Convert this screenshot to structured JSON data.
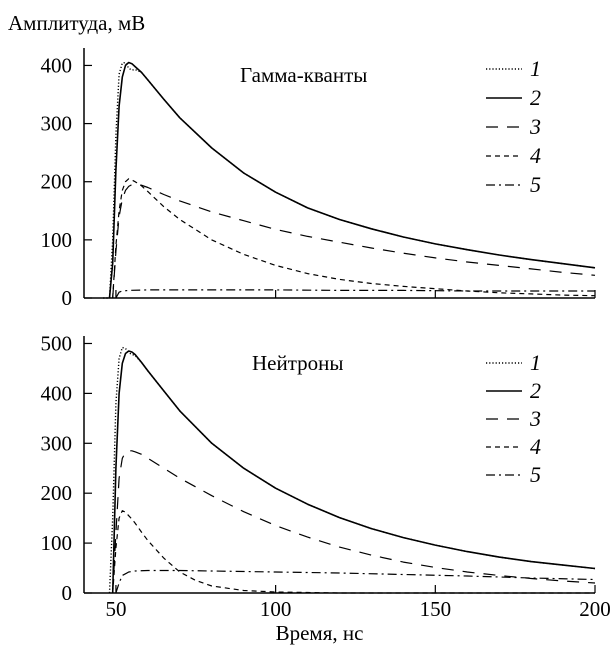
{
  "chart_data": [
    {
      "type": "line",
      "title": "Гамма-кванты",
      "ylabel": "Амплитуда, мВ",
      "xlabel": "",
      "xlim": [
        40,
        200
      ],
      "ylim": [
        0,
        430
      ],
      "yticks": [
        0,
        100,
        200,
        300,
        400
      ],
      "xticks": [
        50,
        100,
        150,
        200
      ],
      "legend_position": "top-right",
      "series": [
        {
          "name": "1",
          "style": "dotted",
          "x": [
            46,
            48,
            49,
            50,
            51,
            52,
            53,
            54,
            55,
            56,
            58,
            60,
            65,
            70,
            80,
            90,
            100,
            110,
            120,
            130,
            140,
            150,
            160,
            170,
            180,
            190,
            200
          ],
          "y": [
            0,
            0,
            100,
            280,
            385,
            404,
            405,
            395,
            392,
            393,
            388,
            375,
            342,
            310,
            258,
            215,
            182,
            155,
            135,
            119,
            105,
            93,
            83,
            74,
            66,
            59,
            52
          ]
        },
        {
          "name": "2",
          "style": "solid",
          "x": [
            48,
            49,
            50,
            51,
            52,
            53,
            54,
            55,
            56,
            58,
            60,
            65,
            70,
            80,
            90,
            100,
            110,
            120,
            130,
            140,
            150,
            160,
            170,
            180,
            190,
            200
          ],
          "y": [
            0,
            60,
            220,
            330,
            380,
            400,
            405,
            403,
            398,
            388,
            375,
            342,
            310,
            258,
            215,
            182,
            155,
            135,
            119,
            105,
            93,
            83,
            74,
            66,
            59,
            52
          ]
        },
        {
          "name": "3",
          "style": "dashed",
          "x": [
            49,
            50,
            51,
            52,
            53,
            54,
            55,
            56,
            58,
            60,
            65,
            70,
            80,
            90,
            100,
            110,
            120,
            130,
            140,
            150,
            160,
            170,
            180,
            190,
            200
          ],
          "y": [
            0,
            80,
            140,
            170,
            185,
            192,
            195,
            196,
            194,
            190,
            178,
            167,
            148,
            133,
            118,
            106,
            96,
            86,
            77,
            69,
            62,
            56,
            50,
            44,
            39
          ]
        },
        {
          "name": "4",
          "style": "short-dashed",
          "x": [
            49,
            50,
            51,
            52,
            53,
            54,
            55,
            56,
            58,
            60,
            65,
            70,
            80,
            90,
            100,
            110,
            120,
            130,
            140,
            150,
            160,
            170,
            180,
            190,
            200
          ],
          "y": [
            0,
            90,
            150,
            185,
            200,
            205,
            203,
            200,
            193,
            183,
            157,
            135,
            100,
            75,
            56,
            42,
            32,
            25,
            20,
            16,
            12,
            9,
            7,
            5,
            4
          ]
        },
        {
          "name": "5",
          "style": "dash-dot",
          "x": [
            50,
            51,
            52,
            54,
            60,
            80,
            100,
            120,
            140,
            160,
            180,
            200
          ],
          "y": [
            0,
            10,
            12,
            13,
            14,
            14,
            14,
            13,
            13,
            12,
            12,
            12
          ]
        }
      ]
    },
    {
      "type": "line",
      "title": "Нейтроны",
      "ylabel": "",
      "xlabel": "Время, нс",
      "xlim": [
        40,
        200
      ],
      "ylim": [
        0,
        515
      ],
      "yticks": [
        0,
        100,
        200,
        300,
        400,
        500
      ],
      "xticks": [
        50,
        100,
        150,
        200
      ],
      "xticklabels": [
        "50",
        "100",
        "150",
        "200"
      ],
      "legend_position": "top-right",
      "series": [
        {
          "name": "1",
          "style": "dotted",
          "x": [
            48,
            49,
            50,
            51,
            52,
            53,
            54,
            55,
            56,
            58,
            60,
            65,
            70,
            80,
            90,
            100,
            110,
            120,
            130,
            140,
            150,
            160,
            170,
            180,
            190,
            200
          ],
          "y": [
            0,
            150,
            380,
            470,
            492,
            490,
            482,
            478,
            476,
            462,
            445,
            405,
            365,
            300,
            250,
            210,
            178,
            151,
            129,
            111,
            96,
            83,
            72,
            63,
            56,
            49
          ]
        },
        {
          "name": "2",
          "style": "solid",
          "x": [
            49,
            50,
            51,
            52,
            53,
            54,
            55,
            56,
            58,
            60,
            65,
            70,
            80,
            90,
            100,
            110,
            120,
            130,
            140,
            150,
            160,
            170,
            180,
            190,
            200
          ],
          "y": [
            0,
            250,
            400,
            460,
            480,
            485,
            483,
            478,
            462,
            445,
            405,
            365,
            300,
            250,
            210,
            178,
            151,
            129,
            111,
            96,
            83,
            72,
            63,
            56,
            49
          ]
        },
        {
          "name": "3",
          "style": "dashed",
          "x": [
            49,
            50,
            51,
            52,
            53,
            54,
            55,
            56,
            58,
            60,
            65,
            70,
            80,
            90,
            100,
            110,
            120,
            130,
            140,
            150,
            160,
            170,
            180,
            190,
            200
          ],
          "y": [
            0,
            120,
            230,
            270,
            282,
            285,
            285,
            283,
            278,
            270,
            250,
            230,
            195,
            163,
            135,
            112,
            92,
            76,
            62,
            51,
            42,
            35,
            29,
            24,
            20
          ]
        },
        {
          "name": "4",
          "style": "short-dashed",
          "x": [
            49,
            50,
            51,
            52,
            53,
            54,
            55,
            56,
            58,
            60,
            65,
            70,
            75,
            80,
            90,
            100,
            110,
            120,
            140,
            160,
            180,
            200
          ],
          "y": [
            0,
            90,
            150,
            165,
            162,
            155,
            148,
            140,
            122,
            105,
            70,
            42,
            25,
            14,
            5,
            2,
            1,
            0,
            0,
            0,
            0,
            0
          ]
        },
        {
          "name": "5",
          "style": "dash-dot",
          "x": [
            50,
            51,
            52,
            54,
            56,
            60,
            70,
            80,
            100,
            120,
            140,
            160,
            180,
            200
          ],
          "y": [
            0,
            20,
            35,
            42,
            44,
            45,
            45,
            44,
            42,
            40,
            37,
            34,
            30,
            27
          ]
        }
      ]
    }
  ]
}
